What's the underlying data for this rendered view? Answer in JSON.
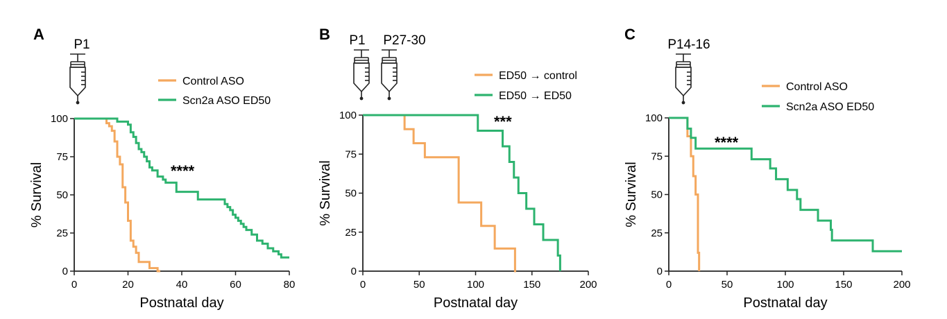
{
  "chart_data": [
    {
      "panel_letter": "A",
      "type": "line",
      "subtype": "kaplan-meier survival curve",
      "injection_labels": [
        "P1"
      ],
      "xlabel": "Postnatal day",
      "ylabel": "% Survival",
      "xlim": [
        0,
        80
      ],
      "ylim": [
        0,
        100
      ],
      "xticks": [
        0,
        20,
        40,
        60,
        80
      ],
      "yticks": [
        0,
        25,
        50,
        75,
        100
      ],
      "legend_position": "top-right",
      "annotation": "****",
      "series": [
        {
          "name": "Control ASO",
          "color": "#F4A85E",
          "x": [
            0,
            12,
            13,
            14,
            15,
            16,
            17,
            18,
            19,
            20,
            21,
            22,
            23,
            24,
            26,
            28,
            30,
            31,
            32
          ],
          "y": [
            100,
            97,
            95,
            92,
            85,
            75,
            70,
            55,
            45,
            33,
            20,
            16,
            12,
            6,
            6,
            2,
            2,
            0,
            0
          ]
        },
        {
          "name": "Scn2a ASO ED50",
          "color": "#2DB36F",
          "x": [
            0,
            14,
            16,
            20,
            21,
            22,
            23,
            24,
            25,
            26,
            27,
            28,
            29,
            31,
            33,
            34,
            36,
            38,
            46,
            53,
            56,
            57,
            58,
            59,
            60,
            61,
            62,
            63,
            64,
            66,
            68,
            70,
            72,
            74,
            76,
            77,
            80
          ],
          "y": [
            100,
            100,
            98,
            96,
            91,
            88,
            84,
            80,
            78,
            75,
            72,
            68,
            66,
            62,
            60,
            58,
            58,
            52,
            47,
            47,
            44,
            42,
            40,
            37,
            35,
            33,
            31,
            29,
            27,
            24,
            20,
            18,
            15,
            13,
            11,
            9,
            9
          ]
        }
      ]
    },
    {
      "panel_letter": "B",
      "type": "line",
      "subtype": "kaplan-meier survival curve",
      "injection_labels": [
        "P1",
        "P27-30"
      ],
      "xlabel": "Postnatal day",
      "ylabel": "% Survival",
      "xlim": [
        0,
        200
      ],
      "ylim": [
        0,
        100
      ],
      "xticks": [
        0,
        50,
        100,
        150,
        200
      ],
      "yticks": [
        0,
        25,
        50,
        75,
        100
      ],
      "legend_position": "top-right",
      "annotation": "***",
      "series": [
        {
          "name": "ED50 → control",
          "color": "#F4A85E",
          "x": [
            0,
            37,
            45,
            55,
            85,
            105,
            117,
            135,
            136
          ],
          "y": [
            100,
            91,
            82,
            73,
            44,
            29,
            14.5,
            0,
            0
          ]
        },
        {
          "name": "ED50 → ED50",
          "color": "#2DB36F",
          "x": [
            0,
            102,
            124,
            130,
            134,
            138,
            145,
            152,
            160,
            173,
            175
          ],
          "y": [
            100,
            90,
            80,
            70,
            60,
            50,
            40,
            30,
            20,
            10,
            0
          ]
        }
      ]
    },
    {
      "panel_letter": "C",
      "type": "line",
      "subtype": "kaplan-meier survival curve",
      "injection_labels": [
        "P14-16"
      ],
      "xlabel": "Postnatal day",
      "ylabel": "% Survival",
      "xlim": [
        0,
        200
      ],
      "ylim": [
        0,
        100
      ],
      "xticks": [
        0,
        50,
        100,
        150,
        200
      ],
      "yticks": [
        0,
        25,
        50,
        75,
        100
      ],
      "legend_position": "top-right",
      "annotation": "****",
      "series": [
        {
          "name": "Control ASO",
          "color": "#F4A85E",
          "x": [
            0,
            16,
            19,
            21,
            23,
            25,
            26
          ],
          "y": [
            100,
            88,
            75,
            62,
            50,
            12,
            0
          ]
        },
        {
          "name": "Scn2a ASO ED50",
          "color": "#2DB36F",
          "x": [
            0,
            16,
            19,
            23,
            71,
            87,
            92,
            102,
            110,
            113,
            117,
            128,
            139,
            140,
            175,
            200
          ],
          "y": [
            100,
            93,
            87,
            80,
            73,
            67,
            60,
            53,
            47,
            40,
            40,
            33,
            27,
            20,
            13,
            13
          ]
        }
      ]
    }
  ]
}
